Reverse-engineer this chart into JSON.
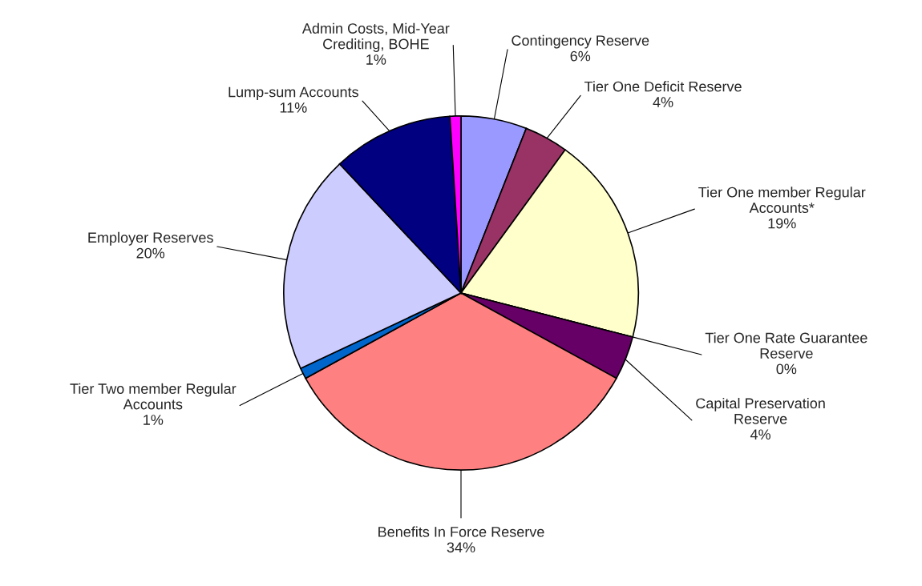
{
  "chart_data": {
    "type": "pie",
    "categories": [
      "Contingency Reserve",
      "Tier One Deficit Reserve",
      "Tier One member Regular\nAccounts*",
      "Tier One Rate Guarantee\nReserve",
      "Capital Preservation\nReserve",
      "Benefits In Force Reserve",
      "Tier Two member Regular\nAccounts",
      "Employer Reserves",
      "Lump-sum Accounts",
      "Admin Costs, Mid-Year\nCrediting, BOHE"
    ],
    "values": [
      6,
      4,
      19,
      0,
      4,
      34,
      1,
      20,
      11,
      1
    ],
    "value_labels": [
      "6%",
      "4%",
      "19%",
      "0%",
      "4%",
      "34%",
      "1%",
      "20%",
      "11%",
      "1%"
    ],
    "colors": [
      "#9999ff",
      "#993366",
      "#ffffcc",
      "#ccffff",
      "#660066",
      "#ff8080",
      "#0066cc",
      "#ccccff",
      "#000080",
      "#ff00ff"
    ]
  }
}
